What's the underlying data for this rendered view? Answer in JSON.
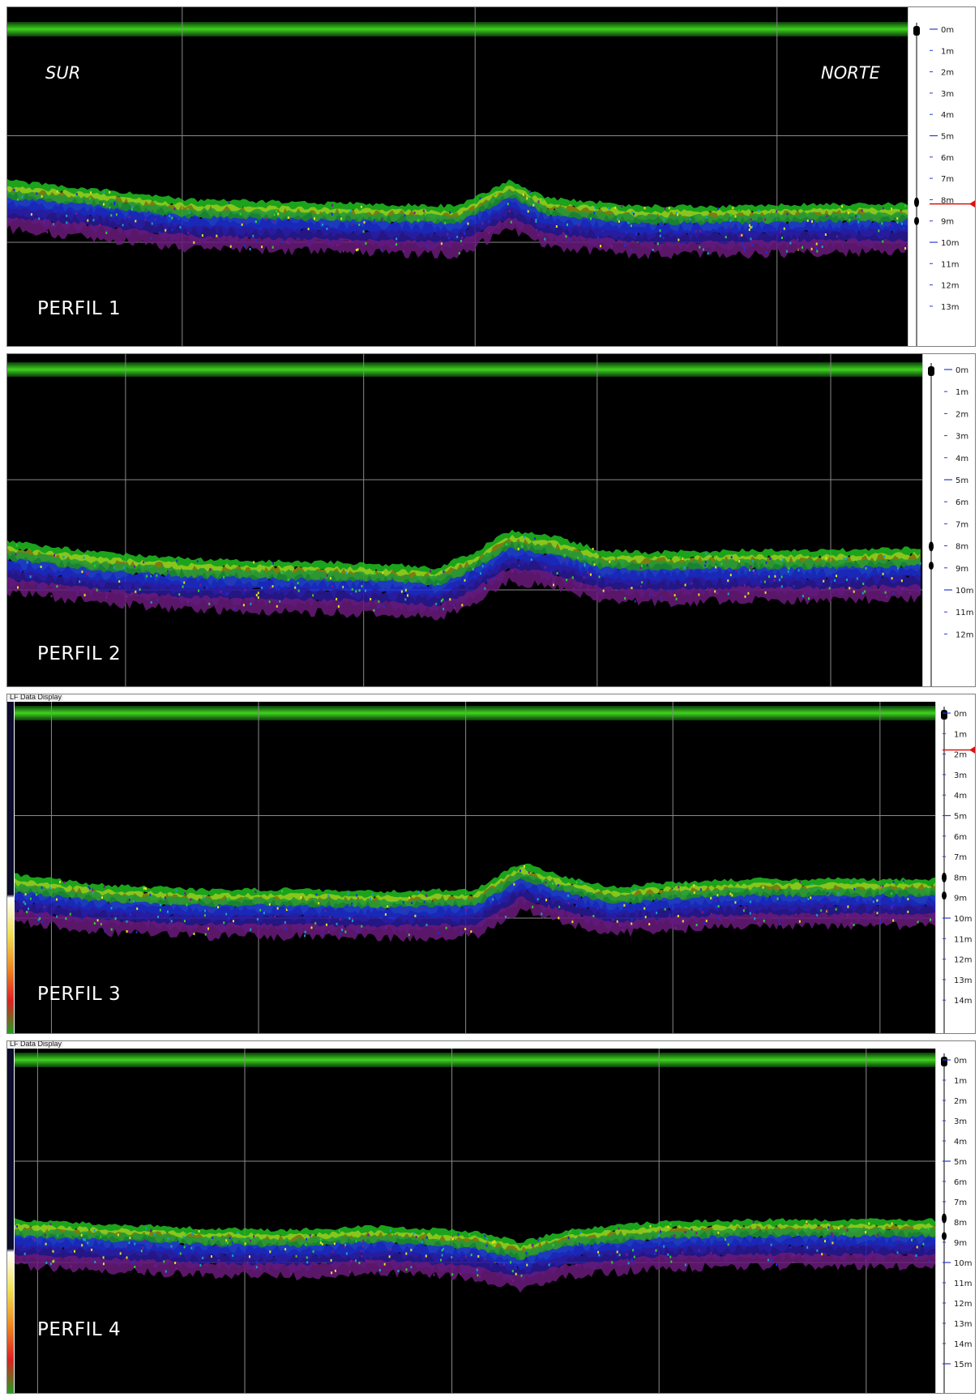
{
  "orientation": {
    "left": "SUR",
    "right": "NORTE"
  },
  "window_title": "LF Data Display",
  "colors": {
    "surface_band": "#3fd21e",
    "background": "#000000",
    "grid": "#8a8a8a",
    "tick_minor": "#2b3bd6",
    "tick_text": "#1a1a1a",
    "marker": "#e01010"
  },
  "panels": [
    {
      "name": "PERFIL 1",
      "depth_labels": [
        "0m",
        "1m",
        "2m",
        "3m",
        "4m",
        "5m",
        "6m",
        "7m",
        "8m",
        "9m",
        "10m",
        "11m",
        "12m",
        "13m"
      ],
      "marker_depth_m": 8.2,
      "seabed_profile": [
        {
          "x": 0.0,
          "depth_m": 7.1
        },
        {
          "x": 0.1,
          "depth_m": 7.5
        },
        {
          "x": 0.2,
          "depth_m": 8.0
        },
        {
          "x": 0.3,
          "depth_m": 8.1
        },
        {
          "x": 0.4,
          "depth_m": 8.2
        },
        {
          "x": 0.5,
          "depth_m": 8.3
        },
        {
          "x": 0.53,
          "depth_m": 7.7
        },
        {
          "x": 0.56,
          "depth_m": 7.1
        },
        {
          "x": 0.6,
          "depth_m": 7.9
        },
        {
          "x": 0.7,
          "depth_m": 8.3
        },
        {
          "x": 0.8,
          "depth_m": 8.3
        },
        {
          "x": 0.9,
          "depth_m": 8.2
        },
        {
          "x": 1.0,
          "depth_m": 8.2
        }
      ]
    },
    {
      "name": "PERFIL 2",
      "depth_labels": [
        "0m",
        "1m",
        "2m",
        "3m",
        "4m",
        "5m",
        "6m",
        "7m",
        "8m",
        "9m",
        "10m",
        "11m",
        "12m"
      ],
      "seabed_profile": [
        {
          "x": 0.0,
          "depth_m": 7.8
        },
        {
          "x": 0.1,
          "depth_m": 8.3
        },
        {
          "x": 0.2,
          "depth_m": 8.6
        },
        {
          "x": 0.3,
          "depth_m": 8.7
        },
        {
          "x": 0.4,
          "depth_m": 8.8
        },
        {
          "x": 0.47,
          "depth_m": 9.0
        },
        {
          "x": 0.51,
          "depth_m": 8.3
        },
        {
          "x": 0.55,
          "depth_m": 7.3
        },
        {
          "x": 0.6,
          "depth_m": 7.6
        },
        {
          "x": 0.65,
          "depth_m": 8.2
        },
        {
          "x": 0.7,
          "depth_m": 8.3
        },
        {
          "x": 0.8,
          "depth_m": 8.2
        },
        {
          "x": 0.9,
          "depth_m": 8.2
        },
        {
          "x": 1.0,
          "depth_m": 8.1
        }
      ]
    },
    {
      "name": "PERFIL 3",
      "depth_labels": [
        "0m",
        "1m",
        "2m",
        "3m",
        "4m",
        "5m",
        "6m",
        "7m",
        "8m",
        "9m",
        "10m",
        "11m",
        "12m",
        "13m",
        "14m"
      ],
      "marker_depth_m": 1.8,
      "seabed_profile": [
        {
          "x": 0.0,
          "depth_m": 7.9
        },
        {
          "x": 0.1,
          "depth_m": 8.4
        },
        {
          "x": 0.2,
          "depth_m": 8.6
        },
        {
          "x": 0.3,
          "depth_m": 8.6
        },
        {
          "x": 0.4,
          "depth_m": 8.7
        },
        {
          "x": 0.5,
          "depth_m": 8.6
        },
        {
          "x": 0.55,
          "depth_m": 7.3
        },
        {
          "x": 0.6,
          "depth_m": 8.0
        },
        {
          "x": 0.65,
          "depth_m": 8.5
        },
        {
          "x": 0.7,
          "depth_m": 8.3
        },
        {
          "x": 0.8,
          "depth_m": 8.1
        },
        {
          "x": 0.9,
          "depth_m": 8.1
        },
        {
          "x": 1.0,
          "depth_m": 8.1
        }
      ]
    },
    {
      "name": "PERFIL 4",
      "depth_labels": [
        "0m",
        "1m",
        "2m",
        "3m",
        "4m",
        "5m",
        "6m",
        "7m",
        "8m",
        "9m",
        "10m",
        "11m",
        "12m",
        "13m",
        "14m",
        "15m"
      ],
      "seabed_profile": [
        {
          "x": 0.0,
          "depth_m": 7.9
        },
        {
          "x": 0.1,
          "depth_m": 8.1
        },
        {
          "x": 0.2,
          "depth_m": 8.3
        },
        {
          "x": 0.3,
          "depth_m": 8.4
        },
        {
          "x": 0.4,
          "depth_m": 8.2
        },
        {
          "x": 0.5,
          "depth_m": 8.5
        },
        {
          "x": 0.55,
          "depth_m": 9.0
        },
        {
          "x": 0.6,
          "depth_m": 8.4
        },
        {
          "x": 0.7,
          "depth_m": 8.0
        },
        {
          "x": 0.8,
          "depth_m": 7.9
        },
        {
          "x": 0.9,
          "depth_m": 7.9
        },
        {
          "x": 1.0,
          "depth_m": 7.9
        }
      ]
    }
  ]
}
